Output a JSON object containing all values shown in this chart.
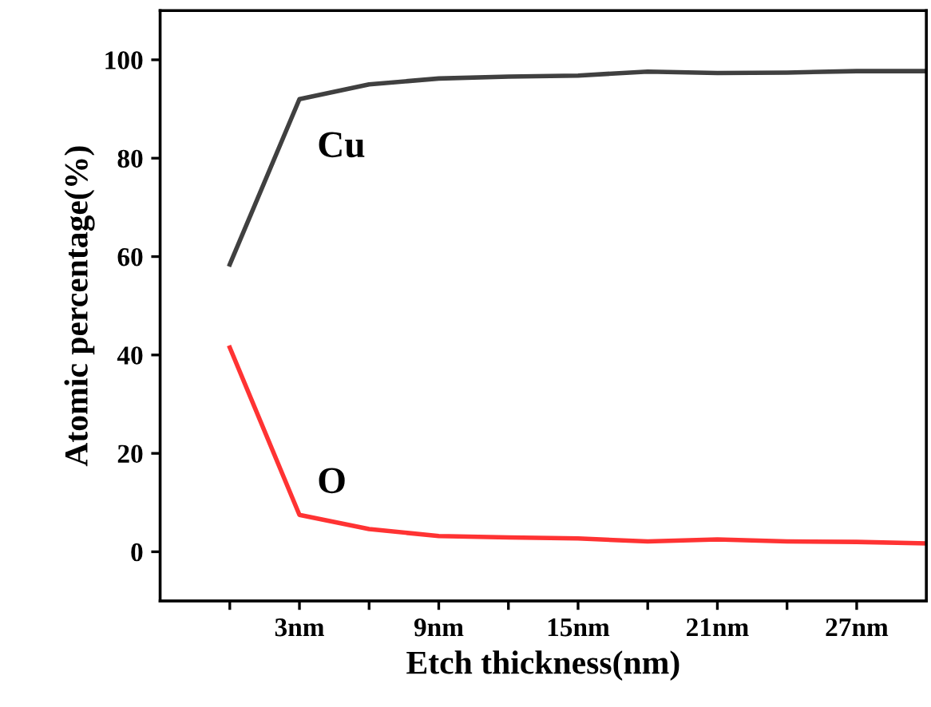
{
  "chart_data": {
    "type": "line",
    "xlabel": "Etch thickness(nm)",
    "ylabel": "Atomic percentage(%)",
    "x": [
      0,
      3,
      6,
      9,
      12,
      15,
      18,
      21,
      24,
      27,
      30
    ],
    "series": [
      {
        "name": "Cu",
        "color": "#404040",
        "values": [
          58.4,
          92.0,
          95.0,
          96.2,
          96.6,
          96.8,
          97.6,
          97.3,
          97.4,
          97.7,
          97.7
        ]
      },
      {
        "name": "O",
        "color": "#ff3333",
        "values": [
          41.5,
          7.5,
          4.6,
          3.2,
          2.9,
          2.7,
          2.1,
          2.5,
          2.1,
          2.0,
          1.7
        ]
      }
    ],
    "xlim": [
      -3,
      30
    ],
    "ylim": [
      -10,
      110
    ],
    "xticks": [
      {
        "value": 0,
        "label": null
      },
      {
        "value": 3,
        "label": "3nm"
      },
      {
        "value": 6,
        "label": null
      },
      {
        "value": 9,
        "label": "9nm"
      },
      {
        "value": 12,
        "label": null
      },
      {
        "value": 15,
        "label": "15nm"
      },
      {
        "value": 18,
        "label": null
      },
      {
        "value": 21,
        "label": "21nm"
      },
      {
        "value": 24,
        "label": null
      },
      {
        "value": 27,
        "label": "27nm"
      }
    ],
    "yticks": [
      0,
      20,
      40,
      60,
      80,
      100
    ],
    "grid": false,
    "legend": false,
    "marker": "none",
    "line_style": "solid"
  }
}
